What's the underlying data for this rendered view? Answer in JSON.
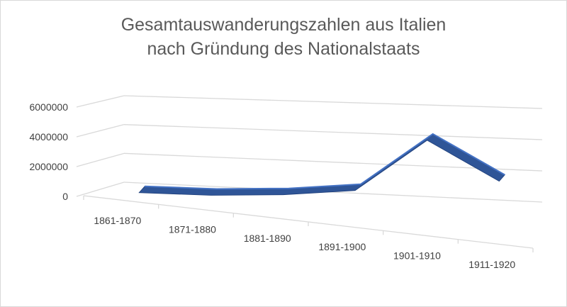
{
  "chart_data": {
    "type": "line",
    "title_lines": [
      "Gesamtauswanderungszahlen aus Italien",
      "nach Gründung des Nationalstaats"
    ],
    "categories": [
      "1861-1870",
      "1871-1880",
      "1881-1890",
      "1891-1900",
      "1901-1910",
      "1911-1920"
    ],
    "series": [
      {
        "values": [
          120000,
          350000,
          800000,
          1500000,
          5400000,
          2900000
        ]
      }
    ],
    "yticks": [
      "0",
      "2000000",
      "4000000",
      "6000000"
    ],
    "ylim": [
      0,
      6000000
    ],
    "xlabel": "",
    "ylabel": "",
    "grid": true,
    "legend": "none",
    "perspective_3d": true,
    "line_color": "#2f5597"
  }
}
